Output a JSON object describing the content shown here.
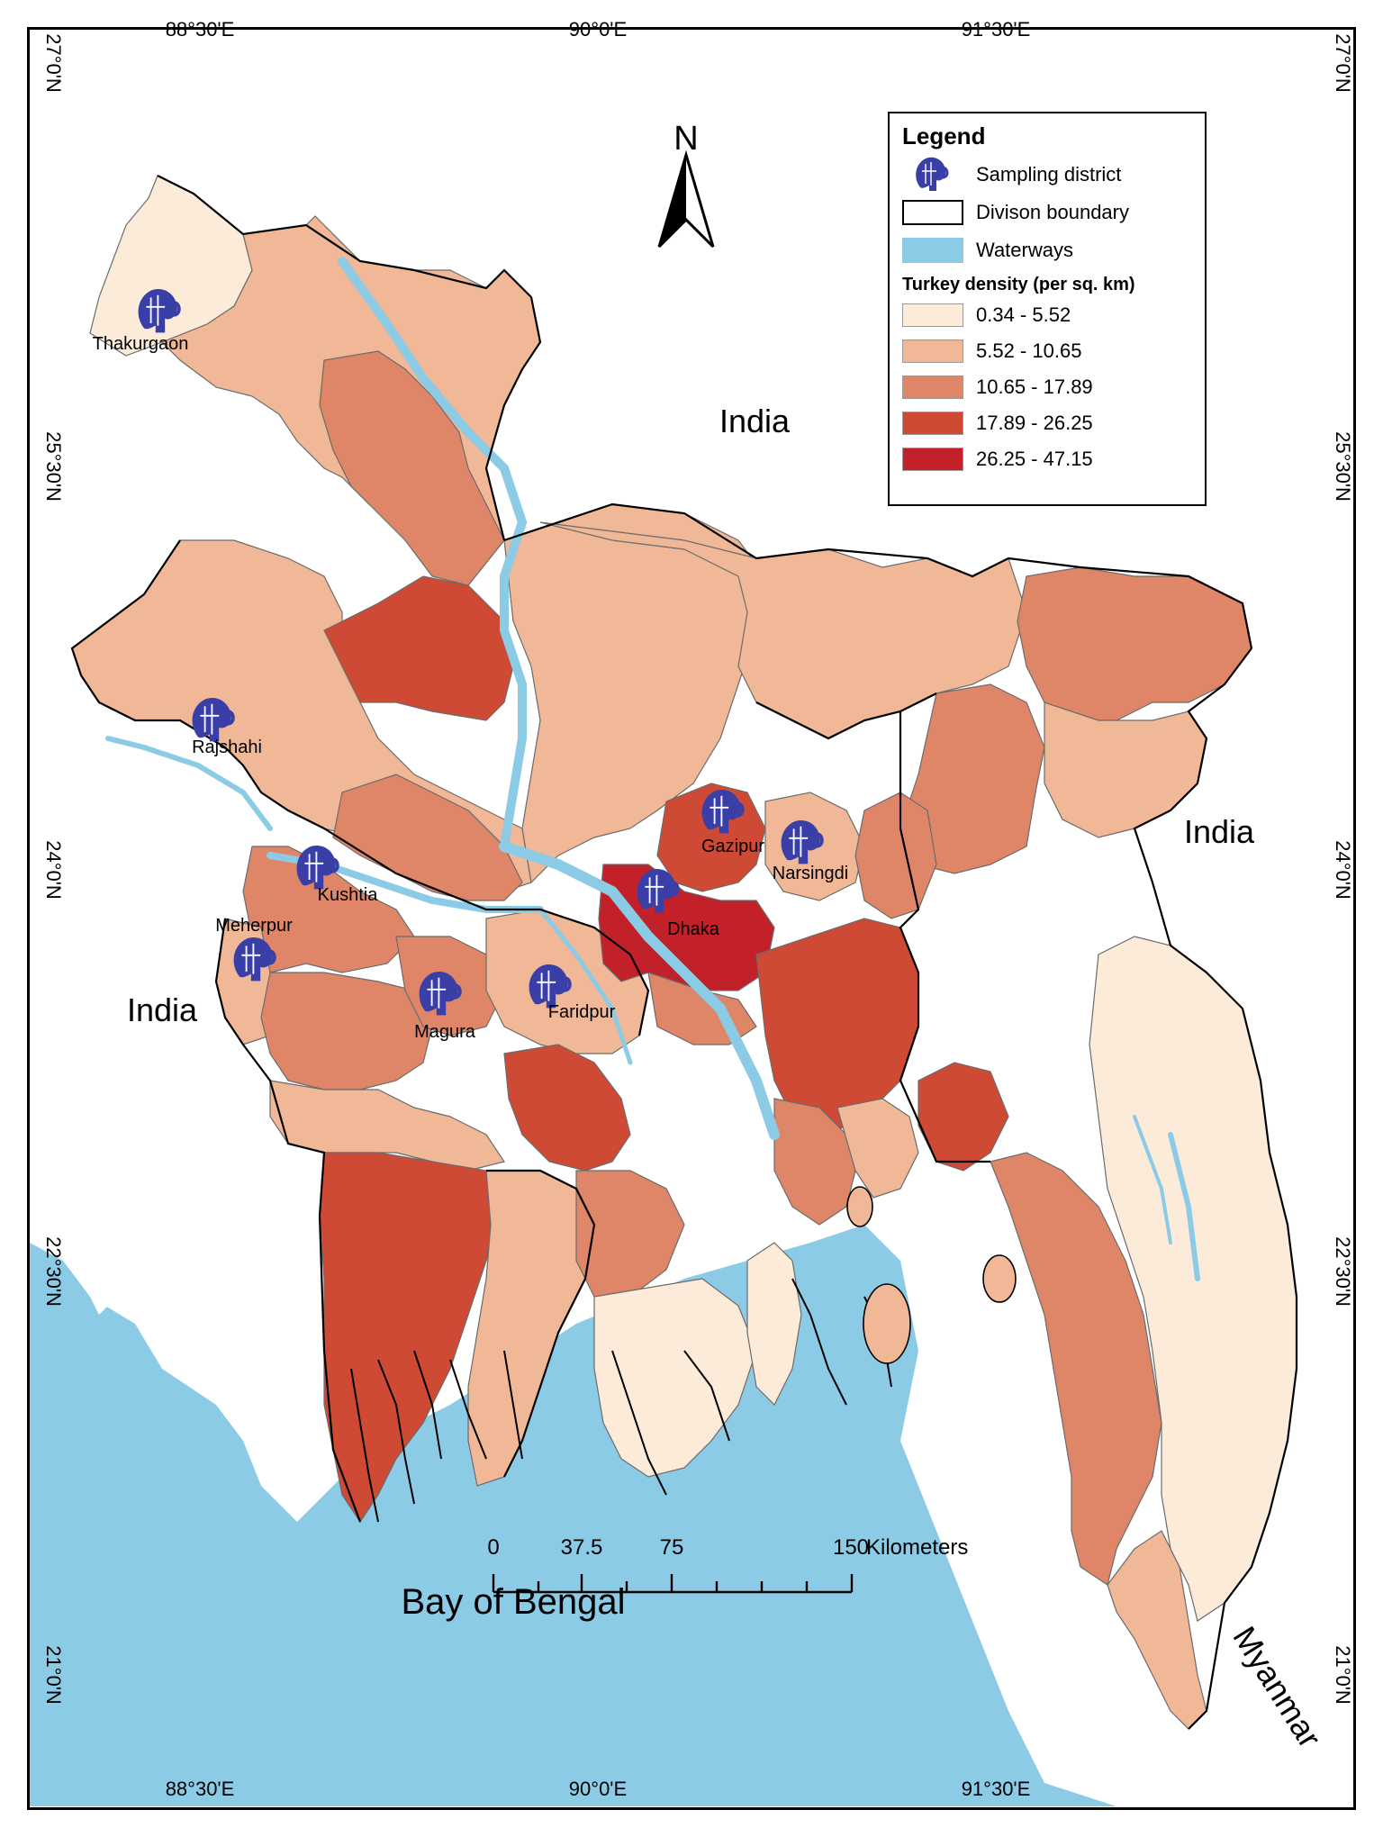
{
  "graticule": {
    "top": [
      "88°30'E",
      "90°0'E",
      "91°30'E"
    ],
    "bottom": [
      "88°30'E",
      "90°0'E",
      "91°30'E"
    ],
    "left": [
      "27°0'N",
      "25°30'N",
      "24°0'N",
      "22°30'N",
      "21°0'N"
    ],
    "right": [
      "27°0'N",
      "25°30'N",
      "24°0'N",
      "22°30'N",
      "21°0'N"
    ]
  },
  "north_arrow": {
    "label": "N"
  },
  "legend": {
    "title": "Legend",
    "sampling_label": "Sampling district",
    "boundary_label": "Divison boundary",
    "waterways_label": "Waterways",
    "density_title": "Turkey density (per sq. km)",
    "classes": [
      {
        "label": "0.34 - 5.52",
        "color": "#fdebd9"
      },
      {
        "label": "5.52 - 10.65",
        "color": "#f0b896"
      },
      {
        "label": "10.65 - 17.89",
        "color": "#e08668"
      },
      {
        "label": "17.89 - 26.25",
        "color": "#cf4a35"
      },
      {
        "label": "26.25 - 47.15",
        "color": "#c3212a"
      }
    ],
    "waterways_color": "#8ccbe6"
  },
  "places": {
    "india_north": "India",
    "india_east": "India",
    "india_west": "India",
    "bay": "Bay of Bengal",
    "myanmar": "Myanmar"
  },
  "districts": [
    "Thakurgaon",
    "Rajshahi",
    "Kushtia",
    "Meherpur",
    "Magura",
    "Faridpur",
    "Gazipur",
    "Narsingdi",
    "Dhaka"
  ],
  "scale_bar": {
    "ticks": [
      "0",
      "37.5",
      "75",
      "150"
    ],
    "unit": "Kilometers"
  }
}
